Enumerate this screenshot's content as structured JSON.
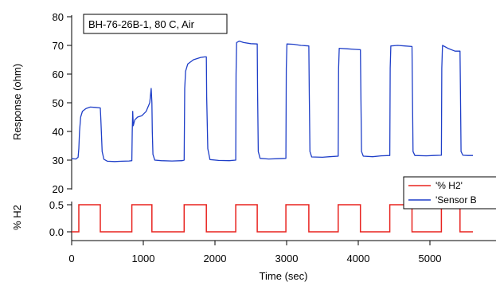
{
  "chart_data": [
    {
      "type": "line",
      "annotation": "BH-76-26B-1, 80 C, Air",
      "ylabel": "Response (ohm)",
      "xlabel": "",
      "xlim": [
        0,
        5600
      ],
      "ylim": [
        20,
        80
      ],
      "yticks": [
        20,
        30,
        40,
        50,
        60,
        70,
        80
      ],
      "grid": false,
      "series": [
        {
          "name": "'Sensor B",
          "color": "#1f3fc8",
          "points": [
            [
              0,
              30.5
            ],
            [
              60,
              30.4
            ],
            [
              90,
              31
            ],
            [
              100,
              34
            ],
            [
              110,
              40
            ],
            [
              125,
              45
            ],
            [
              150,
              47
            ],
            [
              200,
              48
            ],
            [
              260,
              48.5
            ],
            [
              330,
              48.4
            ],
            [
              400,
              48.2
            ],
            [
              408,
              44
            ],
            [
              425,
              33
            ],
            [
              450,
              30.3
            ],
            [
              500,
              29.6
            ],
            [
              600,
              29.5
            ],
            [
              700,
              29.6
            ],
            [
              800,
              29.7
            ],
            [
              840,
              29.8
            ],
            [
              845,
              40
            ],
            [
              852,
              47
            ],
            [
              860,
              42
            ],
            [
              880,
              44
            ],
            [
              920,
              45
            ],
            [
              980,
              45.5
            ],
            [
              1040,
              47
            ],
            [
              1090,
              50
            ],
            [
              1110,
              55
            ],
            [
              1120,
              50
            ],
            [
              1125,
              40
            ],
            [
              1135,
              32
            ],
            [
              1160,
              30
            ],
            [
              1250,
              29.8
            ],
            [
              1400,
              29.7
            ],
            [
              1540,
              29.8
            ],
            [
              1570,
              30
            ],
            [
              1578,
              55
            ],
            [
              1590,
              61
            ],
            [
              1620,
              63.5
            ],
            [
              1700,
              65
            ],
            [
              1800,
              65.8
            ],
            [
              1860,
              66
            ],
            [
              1880,
              66
            ],
            [
              1885,
              52
            ],
            [
              1900,
              34
            ],
            [
              1930,
              30.2
            ],
            [
              2050,
              29.9
            ],
            [
              2200,
              29.8
            ],
            [
              2290,
              30
            ],
            [
              2295,
              60
            ],
            [
              2302,
              71
            ],
            [
              2340,
              71.5
            ],
            [
              2400,
              71
            ],
            [
              2500,
              70.6
            ],
            [
              2590,
              70.5
            ],
            [
              2595,
              55
            ],
            [
              2605,
              33
            ],
            [
              2630,
              30.6
            ],
            [
              2750,
              30.4
            ],
            [
              2880,
              30.5
            ],
            [
              2990,
              30.6
            ],
            [
              2996,
              62
            ],
            [
              3005,
              70.5
            ],
            [
              3100,
              70.4
            ],
            [
              3200,
              70
            ],
            [
              3310,
              69.8
            ],
            [
              3316,
              55
            ],
            [
              3325,
              33
            ],
            [
              3350,
              31.1
            ],
            [
              3500,
              31
            ],
            [
              3600,
              31.2
            ],
            [
              3720,
              31.4
            ],
            [
              3726,
              62
            ],
            [
              3735,
              69
            ],
            [
              3850,
              68.8
            ],
            [
              3960,
              68.6
            ],
            [
              4030,
              68.5
            ],
            [
              4036,
              55
            ],
            [
              4045,
              33
            ],
            [
              4070,
              31.4
            ],
            [
              4200,
              31.2
            ],
            [
              4320,
              31.5
            ],
            [
              4440,
              31.6
            ],
            [
              4446,
              62
            ],
            [
              4455,
              69.8
            ],
            [
              4550,
              70
            ],
            [
              4650,
              69.8
            ],
            [
              4750,
              69.6
            ],
            [
              4756,
              55
            ],
            [
              4765,
              33
            ],
            [
              4790,
              31.6
            ],
            [
              4950,
              31.5
            ],
            [
              5050,
              31.6
            ],
            [
              5160,
              31.7
            ],
            [
              5166,
              62
            ],
            [
              5175,
              70
            ],
            [
              5250,
              69
            ],
            [
              5350,
              68
            ],
            [
              5420,
              68
            ],
            [
              5426,
              55
            ],
            [
              5435,
              33
            ],
            [
              5460,
              31.7
            ],
            [
              5530,
              31.6
            ],
            [
              5600,
              31.6
            ]
          ]
        }
      ]
    },
    {
      "type": "line",
      "ylabel": "% H2",
      "xlabel": "Time (sec)",
      "xlim": [
        0,
        5600
      ],
      "ylim": [
        -0.05,
        0.6
      ],
      "yticks": [
        0.0,
        0.5
      ],
      "ytick_labels": [
        "0.0",
        "0.5"
      ],
      "xticks": [
        0,
        1000,
        2000,
        3000,
        4000,
        5000
      ],
      "grid": false,
      "legend_position": "bottom-right",
      "series": [
        {
          "name": "'% H2'",
          "color": "#e8231f",
          "points": [
            [
              0,
              0
            ],
            [
              100,
              0
            ],
            [
              100,
              0.5
            ],
            [
              400,
              0.5
            ],
            [
              400,
              0
            ],
            [
              840,
              0
            ],
            [
              840,
              0.5
            ],
            [
              1120,
              0.5
            ],
            [
              1120,
              0
            ],
            [
              1570,
              0
            ],
            [
              1570,
              0.5
            ],
            [
              1880,
              0.5
            ],
            [
              1880,
              0
            ],
            [
              2290,
              0
            ],
            [
              2290,
              0.5
            ],
            [
              2590,
              0.5
            ],
            [
              2590,
              0
            ],
            [
              2990,
              0
            ],
            [
              2990,
              0.5
            ],
            [
              3310,
              0.5
            ],
            [
              3310,
              0
            ],
            [
              3720,
              0
            ],
            [
              3720,
              0.5
            ],
            [
              4030,
              0.5
            ],
            [
              4030,
              0
            ],
            [
              4440,
              0
            ],
            [
              4440,
              0.5
            ],
            [
              4750,
              0.5
            ],
            [
              4750,
              0
            ],
            [
              5160,
              0
            ],
            [
              5160,
              0.5
            ],
            [
              5420,
              0.5
            ],
            [
              5420,
              0
            ],
            [
              5600,
              0
            ]
          ]
        }
      ]
    }
  ]
}
